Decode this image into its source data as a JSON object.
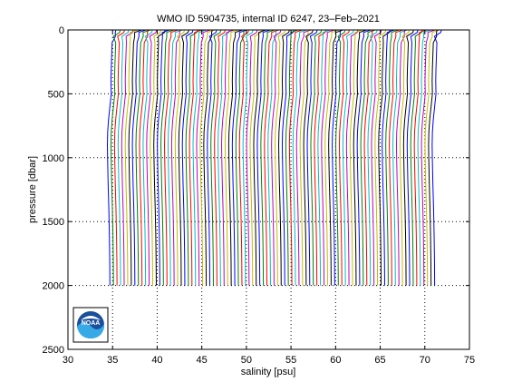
{
  "chart_data": {
    "type": "line",
    "title": "WMO ID 5904735, internal ID 6247, 23–Feb–2021",
    "xlabel": "salinity [psu]",
    "ylabel": "pressure [dbar]",
    "xlim": [
      30,
      75
    ],
    "ylim": [
      0,
      2500
    ],
    "y_reversed": true,
    "xticks": [
      "30",
      "35",
      "40",
      "45",
      "50",
      "55",
      "60",
      "65",
      "70",
      "75"
    ],
    "yticks": [
      "0",
      "500",
      "1000",
      "1500",
      "2000",
      "2500"
    ],
    "grid": true,
    "legend": "none",
    "series_colors": [
      "#0000ff",
      "#008000",
      "#ff0000",
      "#00bfbf",
      "#bf00bf",
      "#bfbf00",
      "#000000"
    ],
    "offset_salinity_step": 0.4,
    "profile_count": 92,
    "first_profile_base_salinity": 35,
    "reference_profile": [
      {
        "p": 0,
        "s": 35.7
      },
      {
        "p": 20,
        "s": 35.3
      },
      {
        "p": 50,
        "s": 35.0
      },
      {
        "p": 100,
        "s": 34.95
      },
      {
        "p": 200,
        "s": 34.9
      },
      {
        "p": 300,
        "s": 34.85
      },
      {
        "p": 400,
        "s": 34.82
      },
      {
        "p": 500,
        "s": 34.85
      },
      {
        "p": 600,
        "s": 34.7
      },
      {
        "p": 700,
        "s": 34.55
      },
      {
        "p": 800,
        "s": 34.45
      },
      {
        "p": 900,
        "s": 34.42
      },
      {
        "p": 1000,
        "s": 34.44
      },
      {
        "p": 1200,
        "s": 34.5
      },
      {
        "p": 1400,
        "s": 34.58
      },
      {
        "p": 1600,
        "s": 34.64
      },
      {
        "p": 1800,
        "s": 34.68
      },
      {
        "p": 2000,
        "s": 34.7
      }
    ]
  },
  "logo": {
    "name": "NOAA",
    "text": "NOAA"
  }
}
